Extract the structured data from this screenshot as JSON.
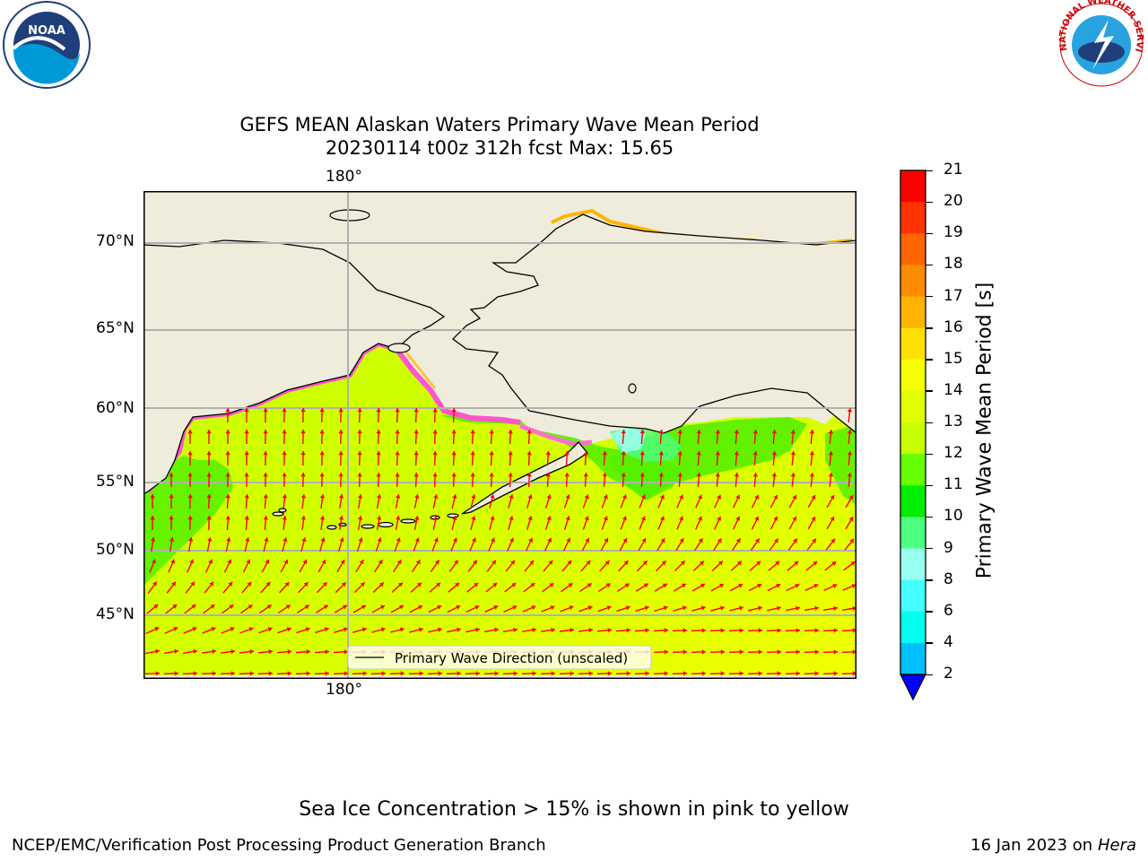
{
  "header": {
    "title_line1": "GEFS MEAN Alaskan Waters Primary Wave Mean Period",
    "title_line2": "20230114 t00z 312h fcst   Max: 15.65"
  },
  "map": {
    "lon_label": "180°",
    "lat_labels": [
      "70°N",
      "65°N",
      "60°N",
      "55°N",
      "50°N",
      "45°N"
    ],
    "legend_label": "Primary Wave Direction (unscaled)",
    "arrow_color": "#ff0000",
    "land_color": "#efecdc",
    "coast_color": "#000000",
    "grid_color": "#b0b0b0"
  },
  "colorbar": {
    "label": "Primary Wave Mean Period [s]",
    "ticks": [
      "21",
      "20",
      "19",
      "18",
      "17",
      "16",
      "15",
      "14",
      "13",
      "12",
      "11",
      "10",
      "9",
      "8",
      "6",
      "4",
      "2"
    ],
    "colors": [
      "#ff0000",
      "#ff3300",
      "#ff6600",
      "#ff8c00",
      "#ffb400",
      "#ffe000",
      "#f5ff00",
      "#e0ff00",
      "#c8ff00",
      "#66ff00",
      "#00ee00",
      "#4dff80",
      "#99ffee",
      "#44ffff",
      "#00ffee",
      "#00bfff",
      "#0066ff"
    ],
    "extend_color": "#0000ff"
  },
  "notes": {
    "sea_ice": "Sea Ice Concentration > 15% is shown in pink to yellow"
  },
  "footer": {
    "left": "NCEP/EMC/Verification Post Processing Product Generation Branch",
    "right_date": "16 Jan 2023 on ",
    "right_host": "Hera"
  },
  "logos": {
    "noaa_text": "NOAA",
    "nws_text": "NATIONAL WEATHER SERVICE"
  }
}
